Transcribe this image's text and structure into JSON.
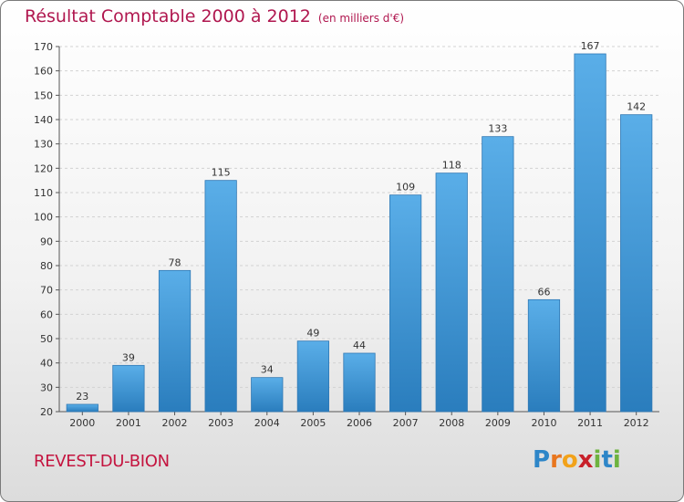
{
  "header": {
    "title": "Résultat Comptable 2000 à 2012",
    "subtitle": "(en milliers d'€)"
  },
  "footer": {
    "commune": "REVEST-DU-BION",
    "logo_letters": [
      "P",
      "r",
      "o",
      "x",
      "i",
      "t",
      "i"
    ],
    "logo_colors": [
      "#2e86c8",
      "#e8761e",
      "#f2a21a",
      "#c8202a",
      "#6db33f",
      "#2e86c8",
      "#6db33f"
    ]
  },
  "chart_data": {
    "type": "bar",
    "title": "Résultat Comptable 2000 à 2012",
    "subtitle": "(en milliers d'€)",
    "categories": [
      "2000",
      "2001",
      "2002",
      "2003",
      "2004",
      "2005",
      "2006",
      "2007",
      "2008",
      "2009",
      "2010",
      "2011",
      "2012"
    ],
    "values": [
      23,
      39,
      78,
      115,
      34,
      49,
      44,
      109,
      118,
      133,
      66,
      167,
      142
    ],
    "ylim": [
      20,
      170
    ],
    "yticks": [
      20,
      30,
      40,
      50,
      60,
      70,
      80,
      90,
      100,
      110,
      120,
      130,
      140,
      150,
      160,
      170
    ],
    "xlabel": "",
    "ylabel": "",
    "grid": true,
    "bar_color_light": "#5aaee8",
    "bar_color_dark": "#2a7dbd"
  }
}
